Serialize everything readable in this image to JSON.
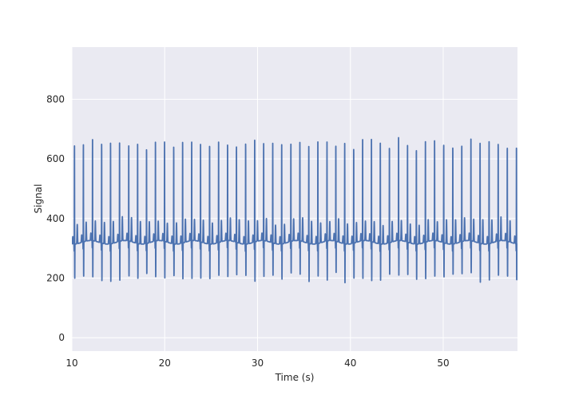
{
  "chart_data": {
    "type": "line",
    "title": "",
    "xlabel": "Time (s)",
    "ylabel": "Signal",
    "xlim": [
      10,
      58
    ],
    "ylim": [
      -45,
      975
    ],
    "xticks": [
      10,
      20,
      30,
      40,
      50
    ],
    "yticks": [
      0,
      200,
      400,
      600,
      800
    ],
    "grid": true,
    "style": "seaborn-darkgrid",
    "colors": {
      "background": "#eaeaf2",
      "grid": "#ffffff",
      "line": "#4c72b0"
    },
    "series": [
      {
        "waveform": "ECG-like periodic signal",
        "baseline": 320,
        "r_peak_max": 670,
        "r_peak_typical": 660,
        "s_trough_typical": 200,
        "t_wave_peak": 400,
        "beat_interval_s": 0.97,
        "start_time_s": 10,
        "end_time_s": 58
      }
    ]
  }
}
